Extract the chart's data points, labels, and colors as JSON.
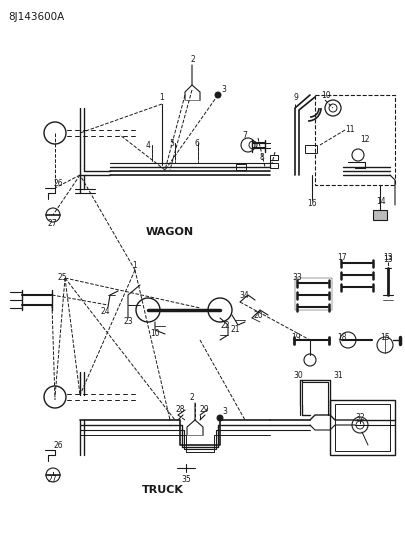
{
  "background_color": "#ffffff",
  "line_color": "#1a1a1a",
  "figsize": [
    4.05,
    5.33
  ],
  "dpi": 100,
  "title": "8J143600A",
  "wagon_label": [
    0.42,
    0.435
  ],
  "truck_label": [
    0.4,
    0.108
  ]
}
